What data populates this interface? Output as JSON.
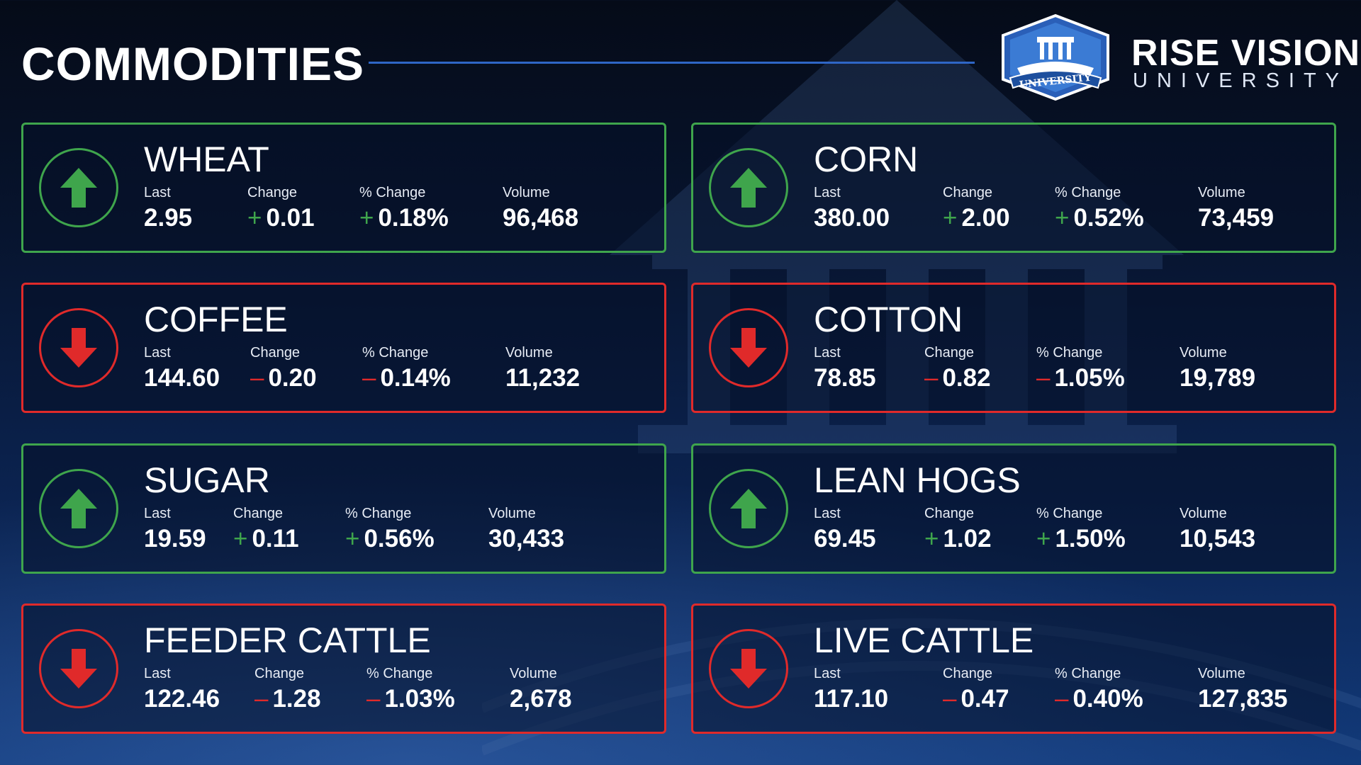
{
  "page": {
    "title": "COMMODITIES"
  },
  "brand": {
    "name": "RISE VISION",
    "sub": "UNIVERSITY",
    "badge_text": "UNIVERSITY"
  },
  "colors": {
    "up": "#3fa54c",
    "down": "#e02a2a",
    "rule": "#2f66c6"
  },
  "labels": {
    "last": "Last",
    "change": "Change",
    "pct": "% Change",
    "volume": "Volume"
  },
  "commodities": [
    {
      "name": "WHEAT",
      "direction": "up",
      "arrow_icon": "arrow-up-icon",
      "last": "2.95",
      "sign": "+",
      "change": "0.01",
      "pct": "0.18%",
      "volume": "96,468"
    },
    {
      "name": "CORN",
      "direction": "up",
      "arrow_icon": "arrow-up-icon",
      "last": "380.00",
      "sign": "+",
      "change": "2.00",
      "pct": "0.52%",
      "volume": "73,459"
    },
    {
      "name": "COFFEE",
      "direction": "down",
      "arrow_icon": "arrow-down-icon",
      "last": "144.60",
      "sign": "–",
      "change": "0.20",
      "pct": "0.14%",
      "volume": "11,232"
    },
    {
      "name": "COTTON",
      "direction": "down",
      "arrow_icon": "arrow-down-icon",
      "last": "78.85",
      "sign": "–",
      "change": "0.82",
      "pct": "1.05%",
      "volume": "19,789"
    },
    {
      "name": "SUGAR",
      "direction": "up",
      "arrow_icon": "arrow-up-icon",
      "last": "19.59",
      "sign": "+",
      "change": "0.11",
      "pct": "0.56%",
      "volume": "30,433"
    },
    {
      "name": "LEAN HOGS",
      "direction": "up",
      "arrow_icon": "arrow-up-icon",
      "last": "69.45",
      "sign": "+",
      "change": "1.02",
      "pct": "1.50%",
      "volume": "10,543"
    },
    {
      "name": "FEEDER CATTLE",
      "direction": "down",
      "arrow_icon": "arrow-down-icon",
      "last": "122.46",
      "sign": "–",
      "change": "1.28",
      "pct": "1.03%",
      "volume": "2,678"
    },
    {
      "name": "LIVE CATTLE",
      "direction": "down",
      "arrow_icon": "arrow-down-icon",
      "last": "117.10",
      "sign": "–",
      "change": "0.47",
      "pct": "0.40%",
      "volume": "127,835"
    }
  ]
}
